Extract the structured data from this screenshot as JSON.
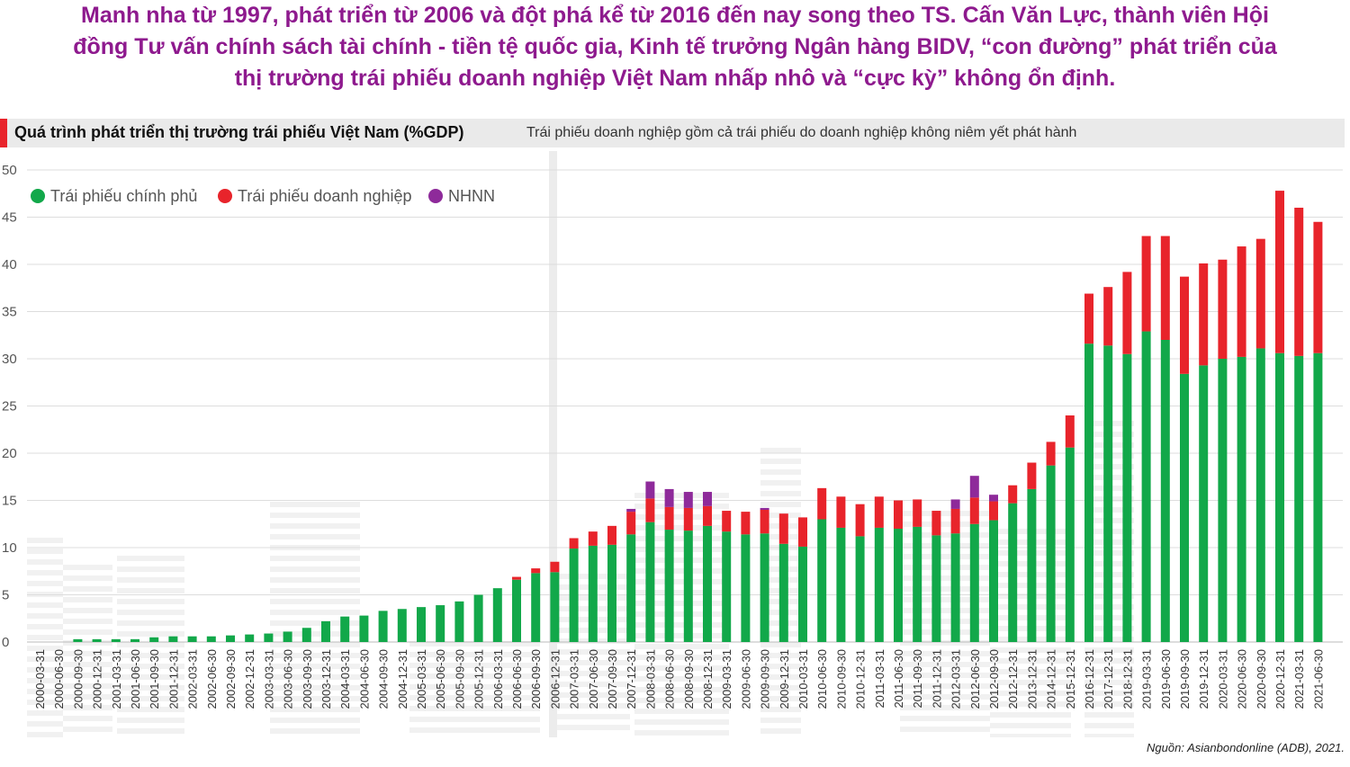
{
  "headline": {
    "line1": "Manh nha từ 1997, phát triển từ 2006 và đột phá kể từ 2016 đến nay song theo TS. Cấn Văn Lực, thành viên Hội",
    "line2": "đồng Tư vấn chính sách tài chính - tiền tệ quốc gia, Kinh tế trưởng Ngân hàng BIDV, “con đường” phát triển của",
    "line3": "thị trường trái phiếu doanh nghiệp Việt Nam nhấp nhô và “cực kỳ” không ổn định."
  },
  "chart_header": {
    "title": "Quá trình phát triển thị trường trái phiếu Việt Nam (%GDP)",
    "subtitle": "Trái phiếu doanh nghiệp gồm cả trái phiếu do doanh nghiệp không niêm yết phát hành"
  },
  "source": "Nguồn: Asianbondonline (ADB), 2021.",
  "colors": {
    "government": "#12a84a",
    "corporate": "#e8242b",
    "sbv": "#8e2a9a",
    "accent": "#e8242b",
    "headline": "#8e1a8e"
  },
  "chart_data": {
    "type": "bar",
    "stacked": true,
    "ylim": [
      0,
      50
    ],
    "yticks": [
      0,
      5,
      10,
      15,
      20,
      25,
      30,
      35,
      40,
      45,
      50
    ],
    "grid": true,
    "legend_position": "top-left",
    "categories": [
      "2000-03-31",
      "2000-06-30",
      "2000-09-30",
      "2000-12-31",
      "2001-03-31",
      "2001-06-30",
      "2001-09-30",
      "2001-12-31",
      "2002-03-31",
      "2002-06-30",
      "2002-09-30",
      "2002-12-31",
      "2003-03-31",
      "2003-06-30",
      "2003-09-30",
      "2003-12-31",
      "2004-03-31",
      "2004-06-30",
      "2004-09-30",
      "2004-12-31",
      "2005-03-31",
      "2005-06-30",
      "2005-09-30",
      "2005-12-31",
      "2006-03-31",
      "2006-06-30",
      "2006-09-30",
      "2006-12-31",
      "2007-03-31",
      "2007-06-30",
      "2007-09-30",
      "2007-12-31",
      "2008-03-31",
      "2008-06-30",
      "2008-09-30",
      "2008-12-31",
      "2009-03-31",
      "2009-06-30",
      "2009-09-30",
      "2009-12-31",
      "2010-03-31",
      "2010-06-30",
      "2010-09-30",
      "2010-12-31",
      "2011-03-31",
      "2011-06-30",
      "2011-09-30",
      "2011-12-31",
      "2012-03-31",
      "2012-06-30",
      "2012-09-30",
      "2012-12-31",
      "2013-12-31",
      "2014-12-31",
      "2015-12-31",
      "2016-12-31",
      "2017-12-31",
      "2018-12-31",
      "2019-03-31",
      "2019-06-30",
      "2019-09-30",
      "2019-12-31",
      "2020-03-31",
      "2020-06-30",
      "2020-09-30",
      "2020-12-31",
      "2021-03-31",
      "2021-06-30"
    ],
    "series": [
      {
        "name": "Trái phiếu chính phủ",
        "values": [
          0,
          0,
          0.3,
          0.3,
          0.3,
          0.3,
          0.5,
          0.6,
          0.6,
          0.6,
          0.7,
          0.8,
          0.9,
          1.1,
          1.5,
          2.2,
          2.7,
          2.8,
          3.3,
          3.5,
          3.7,
          3.9,
          4.3,
          5.0,
          5.7,
          6.6,
          7.3,
          7.4,
          9.9,
          10.2,
          10.3,
          11.4,
          12.7,
          11.9,
          11.8,
          12.3,
          11.7,
          11.4,
          11.5,
          10.4,
          10.1,
          13.0,
          12.1,
          11.2,
          12.1,
          12.0,
          12.2,
          11.3,
          11.5,
          12.5,
          12.9,
          14.7,
          16.2,
          18.7,
          20.6,
          31.6,
          31.4,
          30.5,
          32.9,
          32.0,
          28.4,
          29.3,
          30.0,
          30.2,
          31.1,
          30.6,
          30.3,
          30.6
        ]
      },
      {
        "name": "Trái phiếu doanh nghiệp",
        "values": [
          0,
          0,
          0,
          0,
          0,
          0,
          0,
          0,
          0,
          0,
          0,
          0,
          0,
          0,
          0,
          0,
          0,
          0,
          0,
          0,
          0,
          0,
          0,
          0,
          0,
          0.3,
          0.5,
          1.1,
          1.1,
          1.5,
          2.0,
          2.4,
          2.5,
          2.4,
          2.4,
          2.1,
          2.2,
          2.4,
          2.5,
          3.2,
          3.1,
          3.3,
          3.3,
          3.4,
          3.3,
          3.0,
          2.9,
          2.6,
          2.6,
          2.8,
          2.0,
          1.9,
          2.8,
          2.5,
          3.4,
          5.3,
          6.2,
          8.7,
          10.1,
          11.0,
          10.3,
          10.8,
          10.5,
          11.7,
          11.6,
          17.2,
          15.7,
          13.9
        ]
      },
      {
        "name": "NHNN",
        "values": [
          0,
          0,
          0,
          0,
          0,
          0,
          0,
          0,
          0,
          0,
          0,
          0,
          0,
          0,
          0,
          0,
          0,
          0,
          0,
          0,
          0,
          0,
          0,
          0,
          0,
          0,
          0,
          0,
          0,
          0,
          0,
          0.3,
          1.8,
          1.9,
          1.7,
          1.5,
          0,
          0,
          0.2,
          0,
          0,
          0,
          0,
          0,
          0,
          0,
          0,
          0,
          1.0,
          2.3,
          0.7,
          0,
          0,
          0,
          0,
          0,
          0,
          0,
          0,
          0,
          0,
          0,
          0,
          0,
          0,
          0,
          0,
          0
        ]
      }
    ]
  }
}
